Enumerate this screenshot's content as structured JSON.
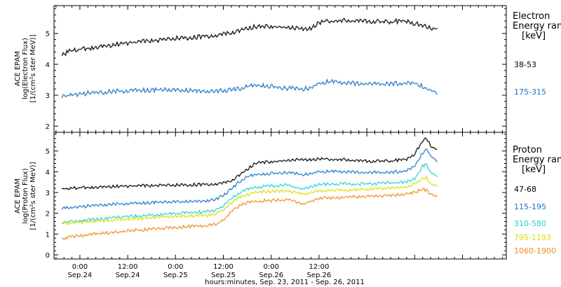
{
  "chart_data": [
    {
      "type": "line",
      "panel": "electron",
      "ylabel": [
        "ACE EPAM",
        "log(Electron Flux)",
        "[1/(cm²s ster MeV)]"
      ],
      "ylim": [
        1.8,
        5.9
      ],
      "yticks": [
        "2",
        "3",
        "4",
        "5"
      ],
      "legend_title": [
        "Electron",
        "Energy ran",
        "[keV]"
      ],
      "series": [
        {
          "name": "38-53",
          "color": "#000000",
          "points": [
            [
              -4.5,
              4.33
            ],
            [
              -3,
              4.45
            ],
            [
              0,
              4.52
            ],
            [
              6,
              4.62
            ],
            [
              12,
              4.72
            ],
            [
              18,
              4.8
            ],
            [
              24,
              4.87
            ],
            [
              30,
              4.92
            ],
            [
              34,
              4.97
            ],
            [
              36,
              5.0
            ],
            [
              38,
              5.05
            ],
            [
              40,
              5.1
            ],
            [
              42,
              5.2
            ],
            [
              44,
              5.25
            ],
            [
              48,
              5.27
            ],
            [
              52,
              5.22
            ],
            [
              56,
              5.17
            ],
            [
              58,
              5.2
            ],
            [
              60,
              5.38
            ],
            [
              62,
              5.43
            ],
            [
              66,
              5.45
            ],
            [
              70,
              5.45
            ],
            [
              74,
              5.42
            ],
            [
              78,
              5.4
            ],
            [
              80,
              5.44
            ],
            [
              82,
              5.44
            ],
            [
              84,
              5.36
            ],
            [
              86,
              5.28
            ],
            [
              88,
              5.22
            ],
            [
              90,
              5.18
            ]
          ]
        },
        {
          "name": "175-315",
          "color": "#1a73c8",
          "points": [
            [
              -4.5,
              2.98
            ],
            [
              -2,
              3.05
            ],
            [
              2,
              3.1
            ],
            [
              8,
              3.15
            ],
            [
              14,
              3.19
            ],
            [
              20,
              3.21
            ],
            [
              24,
              3.21
            ],
            [
              28,
              3.19
            ],
            [
              32,
              3.17
            ],
            [
              36,
              3.18
            ],
            [
              40,
              3.24
            ],
            [
              42,
              3.32
            ],
            [
              44,
              3.36
            ],
            [
              48,
              3.32
            ],
            [
              52,
              3.26
            ],
            [
              56,
              3.24
            ],
            [
              58,
              3.28
            ],
            [
              60,
              3.42
            ],
            [
              62,
              3.47
            ],
            [
              66,
              3.45
            ],
            [
              70,
              3.42
            ],
            [
              74,
              3.4
            ],
            [
              78,
              3.4
            ],
            [
              82,
              3.44
            ],
            [
              84,
              3.42
            ],
            [
              86,
              3.32
            ],
            [
              88,
              3.2
            ],
            [
              90,
              3.1
            ]
          ]
        }
      ]
    },
    {
      "type": "line",
      "panel": "proton",
      "ylabel": [
        "ACE EPAM",
        "log(Proton Flux)",
        "[1/(cm²s ster MeV)]"
      ],
      "ylim": [
        -0.2,
        5.9
      ],
      "yticks": [
        "0",
        "1",
        "2",
        "3",
        "4",
        "5"
      ],
      "legend_title": [
        "Proton",
        "Energy ran",
        "[keV]"
      ],
      "series": [
        {
          "name": "47-68",
          "color": "#000000",
          "points": [
            [
              -4.5,
              3.22
            ],
            [
              -2,
              3.25
            ],
            [
              2,
              3.28
            ],
            [
              8,
              3.32
            ],
            [
              14,
              3.35
            ],
            [
              20,
              3.38
            ],
            [
              26,
              3.4
            ],
            [
              32,
              3.42
            ],
            [
              36,
              3.48
            ],
            [
              38,
              3.6
            ],
            [
              40,
              3.85
            ],
            [
              42,
              4.15
            ],
            [
              44,
              4.45
            ],
            [
              46,
              4.5
            ],
            [
              50,
              4.55
            ],
            [
              54,
              4.6
            ],
            [
              58,
              4.62
            ],
            [
              60,
              4.65
            ],
            [
              66,
              4.62
            ],
            [
              72,
              4.55
            ],
            [
              78,
              4.55
            ],
            [
              82,
              4.65
            ],
            [
              84,
              4.9
            ],
            [
              86,
              5.5
            ],
            [
              87,
              5.65
            ],
            [
              88,
              5.3
            ],
            [
              90,
              5.05
            ]
          ]
        },
        {
          "name": "115-195",
          "color": "#1a73c8",
          "points": [
            [
              -4.5,
              2.25
            ],
            [
              -3,
              2.3
            ],
            [
              0,
              2.35
            ],
            [
              6,
              2.45
            ],
            [
              12,
              2.5
            ],
            [
              18,
              2.55
            ],
            [
              24,
              2.6
            ],
            [
              30,
              2.62
            ],
            [
              34,
              2.7
            ],
            [
              36,
              2.9
            ],
            [
              38,
              3.2
            ],
            [
              40,
              3.55
            ],
            [
              42,
              3.8
            ],
            [
              44,
              3.9
            ],
            [
              48,
              3.95
            ],
            [
              52,
              4.0
            ],
            [
              56,
              3.9
            ],
            [
              58,
              3.95
            ],
            [
              60,
              4.05
            ],
            [
              66,
              4.05
            ],
            [
              72,
              4.0
            ],
            [
              78,
              4.0
            ],
            [
              82,
              4.1
            ],
            [
              84,
              4.3
            ],
            [
              86,
              4.95
            ],
            [
              87,
              5.15
            ],
            [
              88,
              4.8
            ],
            [
              90,
              4.5
            ]
          ]
        },
        {
          "name": "310-580",
          "color": "#21d1d1",
          "points": [
            [
              -4.5,
              1.6
            ],
            [
              -2,
              1.65
            ],
            [
              2,
              1.72
            ],
            [
              8,
              1.82
            ],
            [
              14,
              1.9
            ],
            [
              20,
              1.98
            ],
            [
              26,
              2.05
            ],
            [
              32,
              2.12
            ],
            [
              34,
              2.2
            ],
            [
              36,
              2.4
            ],
            [
              38,
              2.75
            ],
            [
              40,
              3.0
            ],
            [
              42,
              3.2
            ],
            [
              44,
              3.3
            ],
            [
              48,
              3.35
            ],
            [
              52,
              3.4
            ],
            [
              56,
              3.2
            ],
            [
              58,
              3.3
            ],
            [
              60,
              3.42
            ],
            [
              66,
              3.45
            ],
            [
              72,
              3.45
            ],
            [
              78,
              3.5
            ],
            [
              82,
              3.55
            ],
            [
              84,
              3.7
            ],
            [
              86,
              4.3
            ],
            [
              87,
              4.4
            ],
            [
              88,
              4.0
            ],
            [
              90,
              3.8
            ]
          ]
        },
        {
          "name": "795-1193",
          "color": "#d8de00",
          "points": [
            [
              -4.5,
              1.55
            ],
            [
              -2,
              1.58
            ],
            [
              2,
              1.62
            ],
            [
              8,
              1.7
            ],
            [
              14,
              1.78
            ],
            [
              20,
              1.84
            ],
            [
              26,
              1.9
            ],
            [
              32,
              1.95
            ],
            [
              34,
              2.0
            ],
            [
              36,
              2.2
            ],
            [
              38,
              2.55
            ],
            [
              40,
              2.8
            ],
            [
              42,
              2.95
            ],
            [
              44,
              3.05
            ],
            [
              48,
              3.1
            ],
            [
              52,
              3.12
            ],
            [
              56,
              2.95
            ],
            [
              58,
              3.05
            ],
            [
              60,
              3.12
            ],
            [
              66,
              3.15
            ],
            [
              72,
              3.2
            ],
            [
              78,
              3.25
            ],
            [
              82,
              3.3
            ],
            [
              84,
              3.45
            ],
            [
              86,
              3.7
            ],
            [
              87,
              3.75
            ],
            [
              88,
              3.45
            ],
            [
              90,
              3.3
            ]
          ]
        },
        {
          "name": "1060-1900",
          "color": "#f08a1c",
          "points": [
            [
              -4.5,
              0.82
            ],
            [
              -2,
              0.9
            ],
            [
              2,
              1.0
            ],
            [
              8,
              1.12
            ],
            [
              14,
              1.22
            ],
            [
              20,
              1.3
            ],
            [
              26,
              1.38
            ],
            [
              32,
              1.45
            ],
            [
              34,
              1.5
            ],
            [
              36,
              1.7
            ],
            [
              38,
              2.1
            ],
            [
              40,
              2.4
            ],
            [
              42,
              2.55
            ],
            [
              44,
              2.6
            ],
            [
              48,
              2.65
            ],
            [
              52,
              2.7
            ],
            [
              56,
              2.5
            ],
            [
              58,
              2.6
            ],
            [
              60,
              2.75
            ],
            [
              66,
              2.8
            ],
            [
              72,
              2.85
            ],
            [
              78,
              2.9
            ],
            [
              82,
              2.95
            ],
            [
              84,
              3.05
            ],
            [
              86,
              3.2
            ],
            [
              87,
              3.15
            ],
            [
              88,
              2.95
            ],
            [
              90,
              2.85
            ]
          ]
        }
      ]
    }
  ],
  "x_axis": {
    "xlim": [
      -6.5,
      107
    ],
    "ticks": [
      {
        "hours": 0,
        "time": "0:00",
        "date": "Sep.24"
      },
      {
        "hours": 12,
        "time": "12:00",
        "date": "Sep.24"
      },
      {
        "hours": 24,
        "time": "0:00",
        "date": "Sep.25"
      },
      {
        "hours": 36,
        "time": "12:00",
        "date": "Sep.25"
      },
      {
        "hours": 48,
        "time": "0:00",
        "date": "Sep.26"
      },
      {
        "hours": 60,
        "time": "12:00",
        "date": "Sep.26"
      }
    ],
    "label": "hours:minutes, Sep. 23, 2011 - Sep. 26, 2011"
  }
}
